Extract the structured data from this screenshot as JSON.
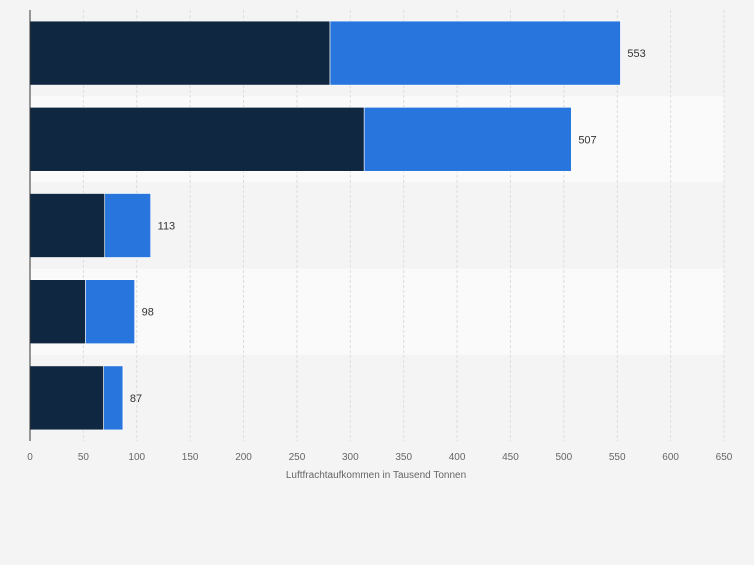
{
  "chart_data": {
    "type": "bar",
    "orientation": "horizontal",
    "stacked": true,
    "categories": [
      "",
      "",
      "",
      "",
      ""
    ],
    "series": [
      {
        "values": [
          281,
          313,
          70,
          52,
          69
        ],
        "color": "#0f2740"
      },
      {
        "values": [
          272,
          194,
          43,
          46,
          18
        ],
        "color": "#2876dd"
      }
    ],
    "totals": [
      553,
      507,
      113,
      98,
      87
    ],
    "xlabel": "Luftfrachtaufkommen in Tausend Tonnen",
    "xlim": [
      0,
      650
    ],
    "xticks": [
      0,
      50,
      100,
      150,
      200,
      250,
      300,
      350,
      400,
      450,
      500,
      550,
      600,
      650
    ],
    "grid": true,
    "legend": "none"
  }
}
